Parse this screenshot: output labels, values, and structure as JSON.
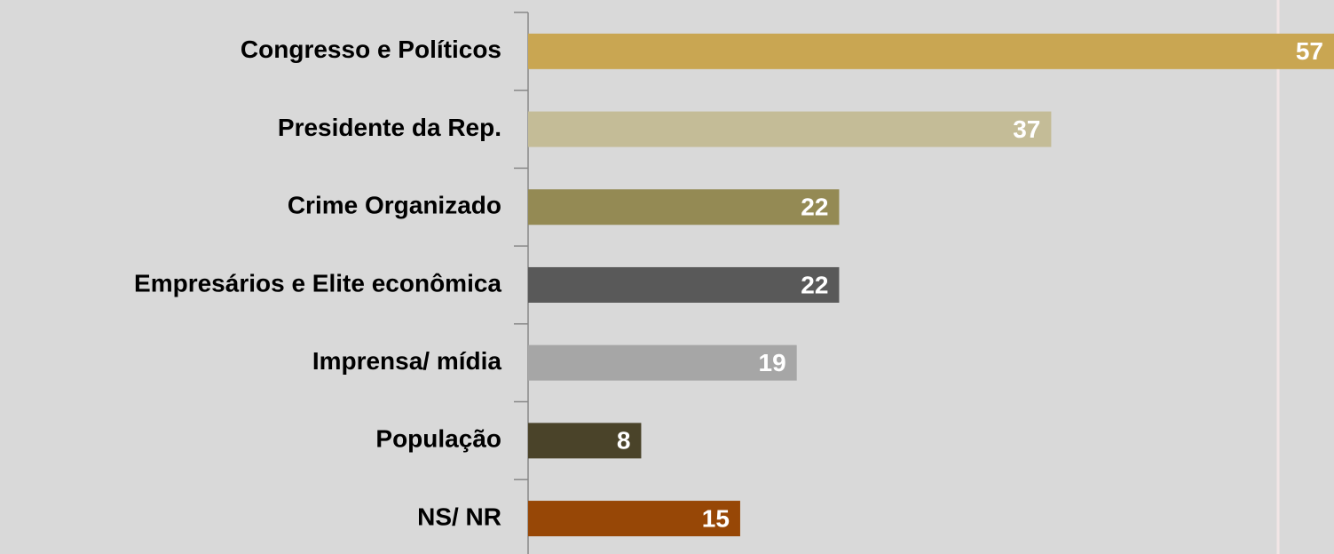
{
  "chart_data": {
    "type": "bar",
    "orientation": "horizontal",
    "categories": [
      "Congresso e Políticos",
      "Presidente da Rep.",
      "Crime Organizado",
      "Empresários e Elite econômica",
      "Imprensa/ mídia",
      "População",
      "NS/ NR"
    ],
    "values": [
      57,
      37,
      22,
      22,
      19,
      8,
      15
    ],
    "colors": [
      "#c9a652",
      "#c4bc97",
      "#948a54",
      "#595959",
      "#a6a6a6",
      "#4a4329",
      "#974706"
    ],
    "xlim": [
      0,
      57
    ]
  }
}
